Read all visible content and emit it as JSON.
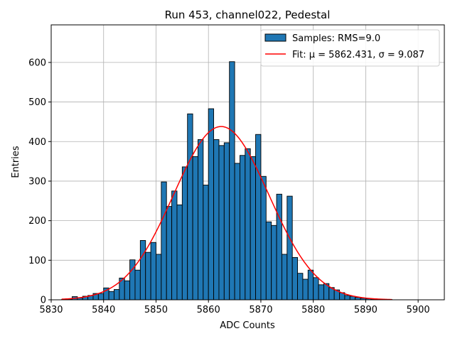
{
  "chart_data": {
    "type": "bar",
    "title": "Run 453, channel022, Pedestal",
    "xlabel": "ADC Counts",
    "ylabel": "Entries",
    "xlim": [
      5830,
      5905
    ],
    "ylim": [
      0,
      695
    ],
    "xticks": [
      5830,
      5840,
      5850,
      5860,
      5870,
      5880,
      5890,
      5900
    ],
    "yticks": [
      0,
      100,
      200,
      300,
      400,
      500,
      600
    ],
    "grid": true,
    "legend_position": "top-right",
    "colors": {
      "bars": "#1f77b4",
      "bar_edge": "#000000",
      "fit": "#ff0000",
      "grid": "#b0b0b0"
    },
    "series": [
      {
        "name": "Samples: RMS=9.0",
        "kind": "histogram",
        "bin_width": 1,
        "x": [
          5832,
          5833,
          5834,
          5835,
          5836,
          5837,
          5838,
          5839,
          5840,
          5841,
          5842,
          5843,
          5844,
          5845,
          5846,
          5847,
          5848,
          5849,
          5850,
          5851,
          5852,
          5853,
          5854,
          5855,
          5856,
          5857,
          5858,
          5859,
          5860,
          5861,
          5862,
          5863,
          5864,
          5865,
          5866,
          5867,
          5868,
          5869,
          5870,
          5871,
          5872,
          5873,
          5874,
          5875,
          5876,
          5877,
          5878,
          5879,
          5880,
          5881,
          5882,
          5883,
          5884,
          5885,
          5886,
          5887,
          5888,
          5889,
          5890,
          5891,
          5892,
          5893,
          5894
        ],
        "values": [
          1,
          2,
          8,
          5,
          9,
          11,
          16,
          16,
          30,
          21,
          26,
          55,
          48,
          101,
          75,
          150,
          120,
          145,
          115,
          298,
          236,
          275,
          240,
          336,
          470,
          362,
          405,
          290,
          483,
          405,
          390,
          397,
          602,
          345,
          365,
          382,
          362,
          418,
          312,
          197,
          188,
          267,
          115,
          262,
          107,
          67,
          52,
          75,
          56,
          38,
          41,
          31,
          25,
          18,
          11,
          9,
          6,
          4,
          3,
          2,
          1,
          1,
          1
        ]
      },
      {
        "name": "Fit: μ = 5862.431, σ = 9.087",
        "kind": "gaussian-fit",
        "mu": 5862.431,
        "sigma": 9.087,
        "amplitude": 438,
        "x_range": [
          5832,
          5895
        ]
      }
    ]
  }
}
